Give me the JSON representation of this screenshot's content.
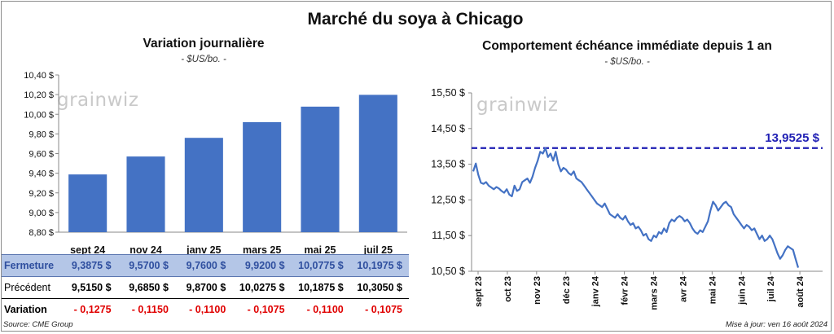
{
  "title": "Marché du soya à Chicago",
  "left_panel": {
    "title": "Variation journalière",
    "unit": "- $US/bo. -"
  },
  "right_panel": {
    "title": "Comportement  échéance immédiate depuis 1 an",
    "unit": "- $US/bo. -",
    "reference_label": "13,9525 $"
  },
  "logo": {
    "text": "grainwiz"
  },
  "table": {
    "rows": [
      {
        "label": "Fermeture",
        "values": [
          "9,3875  $",
          "9,5700  $",
          "9,7600  $",
          "9,9200  $",
          "10,0775  $",
          "10,1975  $"
        ]
      },
      {
        "label": "Précédent",
        "values": [
          "9,5150  $",
          "9,6850  $",
          "9,8700  $",
          "10,0275  $",
          "10,1875  $",
          "10,3050  $"
        ]
      },
      {
        "label": "Variation",
        "values": [
          "- 0,1275",
          "- 0,1150",
          "- 0,1100",
          "- 0,1075",
          "- 0,1100",
          "- 0,1075"
        ]
      }
    ]
  },
  "footer": {
    "source": "Source: CME Group",
    "update": "Mise à jour: ven 16 août 2024"
  },
  "colors": {
    "bar": "#4472c4",
    "line": "#4472c4",
    "reference": "#1f1fb4",
    "close_row_bg": "#b4c6e7",
    "negative": "#e00000"
  },
  "chart_data": [
    {
      "type": "bar",
      "categories": [
        "sept 24",
        "nov 24",
        "janv 25",
        "mars 25",
        "mai 25",
        "juil 25"
      ],
      "values": [
        9.3875,
        9.57,
        9.76,
        9.92,
        10.0775,
        10.1975
      ],
      "ylim": [
        8.8,
        10.4
      ],
      "yticks": [
        "8,80 $",
        "9,00 $",
        "9,20 $",
        "9,40 $",
        "9,60 $",
        "9,80 $",
        "10,00 $",
        "10,20 $",
        "10,40 $"
      ],
      "grid": false
    },
    {
      "type": "line",
      "x_labels": [
        "sept 23",
        "oct 23",
        "nov 23",
        "déc 23",
        "janv 24",
        "févr 24",
        "mars 24",
        "avr 24",
        "mai 24",
        "juin 24",
        "juil 24",
        "août 24"
      ],
      "ylim": [
        10.5,
        15.5
      ],
      "yticks": [
        "10,50 $",
        "11,50 $",
        "12,50 $",
        "13,50 $",
        "14,50 $",
        "15,50 $"
      ],
      "reference_line": 13.9525,
      "series": [
        {
          "values": [
            13.3,
            13.52,
            13.2,
            12.98,
            12.95,
            13.0,
            12.9,
            12.85,
            12.8,
            12.86,
            12.82,
            12.75,
            12.7,
            12.8,
            12.65,
            12.6,
            12.9,
            12.75,
            12.8,
            13.0,
            13.05,
            13.1,
            12.98,
            13.15,
            13.4,
            13.6,
            13.85,
            13.8,
            13.95,
            13.7,
            13.8,
            13.6,
            13.85,
            13.5,
            13.3,
            13.4,
            13.35,
            13.25,
            13.2,
            13.3,
            13.1,
            13.05,
            13.0,
            12.9,
            12.8,
            12.7,
            12.6,
            12.5,
            12.4,
            12.35,
            12.3,
            12.4,
            12.25,
            12.1,
            12.05,
            12.0,
            12.1,
            12.0,
            11.95,
            12.05,
            11.9,
            11.8,
            11.85,
            11.7,
            11.75,
            11.65,
            11.5,
            11.55,
            11.4,
            11.35,
            11.5,
            11.45,
            11.6,
            11.55,
            11.7,
            11.6,
            11.85,
            11.95,
            11.9,
            12.0,
            12.05,
            12.0,
            11.9,
            11.95,
            11.85,
            11.7,
            11.6,
            11.55,
            11.65,
            11.6,
            11.75,
            11.9,
            12.2,
            12.45,
            12.35,
            12.2,
            12.3,
            12.4,
            12.45,
            12.35,
            12.3,
            12.1,
            12.0,
            11.9,
            11.8,
            11.7,
            11.8,
            11.75,
            11.65,
            11.7,
            11.55,
            11.4,
            11.5,
            11.35,
            11.4,
            11.5,
            11.4,
            11.2,
            11.0,
            10.85,
            10.95,
            11.1,
            11.2,
            11.15,
            11.1,
            10.85,
            10.6
          ]
        }
      ]
    }
  ]
}
